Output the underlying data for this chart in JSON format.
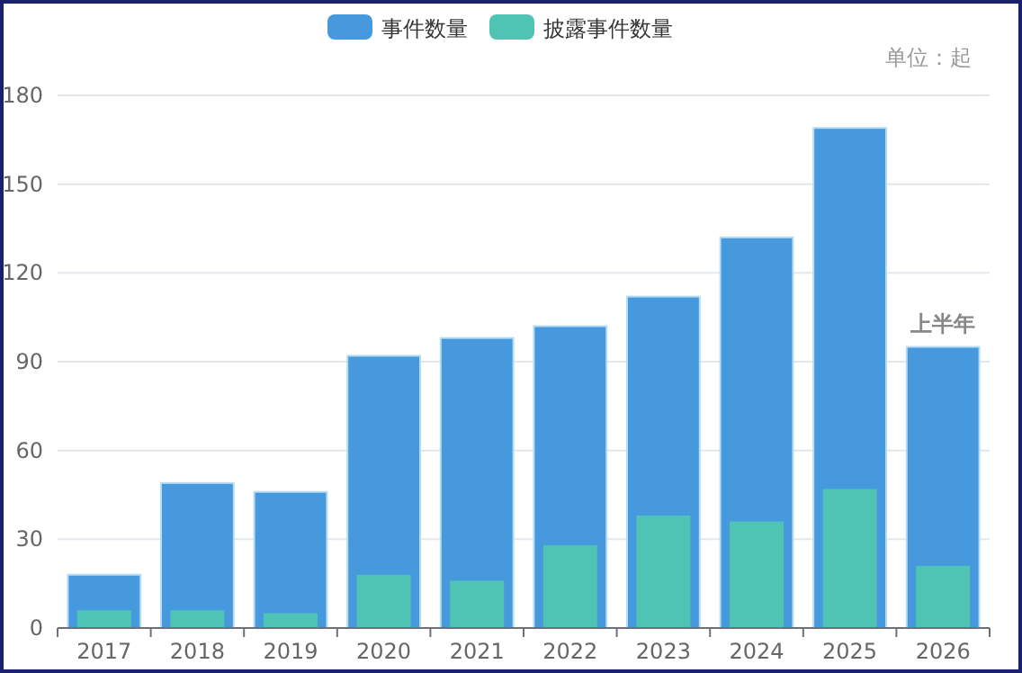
{
  "chart_data": {
    "type": "bar",
    "categories": [
      "2017",
      "2018",
      "2019",
      "2020",
      "2021",
      "2022",
      "2023",
      "2024",
      "2025",
      "2026"
    ],
    "series": [
      {
        "name": "事件数量",
        "color": "#4599dc",
        "values": [
          18,
          49,
          46,
          92,
          98,
          102,
          112,
          132,
          169,
          95
        ]
      },
      {
        "name": "披露事件数量",
        "color": "#4fc3b4",
        "values": [
          6,
          6,
          5,
          18,
          16,
          28,
          38,
          36,
          47,
          21
        ]
      }
    ],
    "ylim": [
      0,
      180
    ],
    "yticks": [
      0,
      30,
      60,
      90,
      120,
      150,
      180
    ],
    "grid": "y",
    "legend": "top",
    "annotations": [
      "单位：起",
      {
        "text": "上半年",
        "x": "2026",
        "y": 95
      }
    ]
  }
}
